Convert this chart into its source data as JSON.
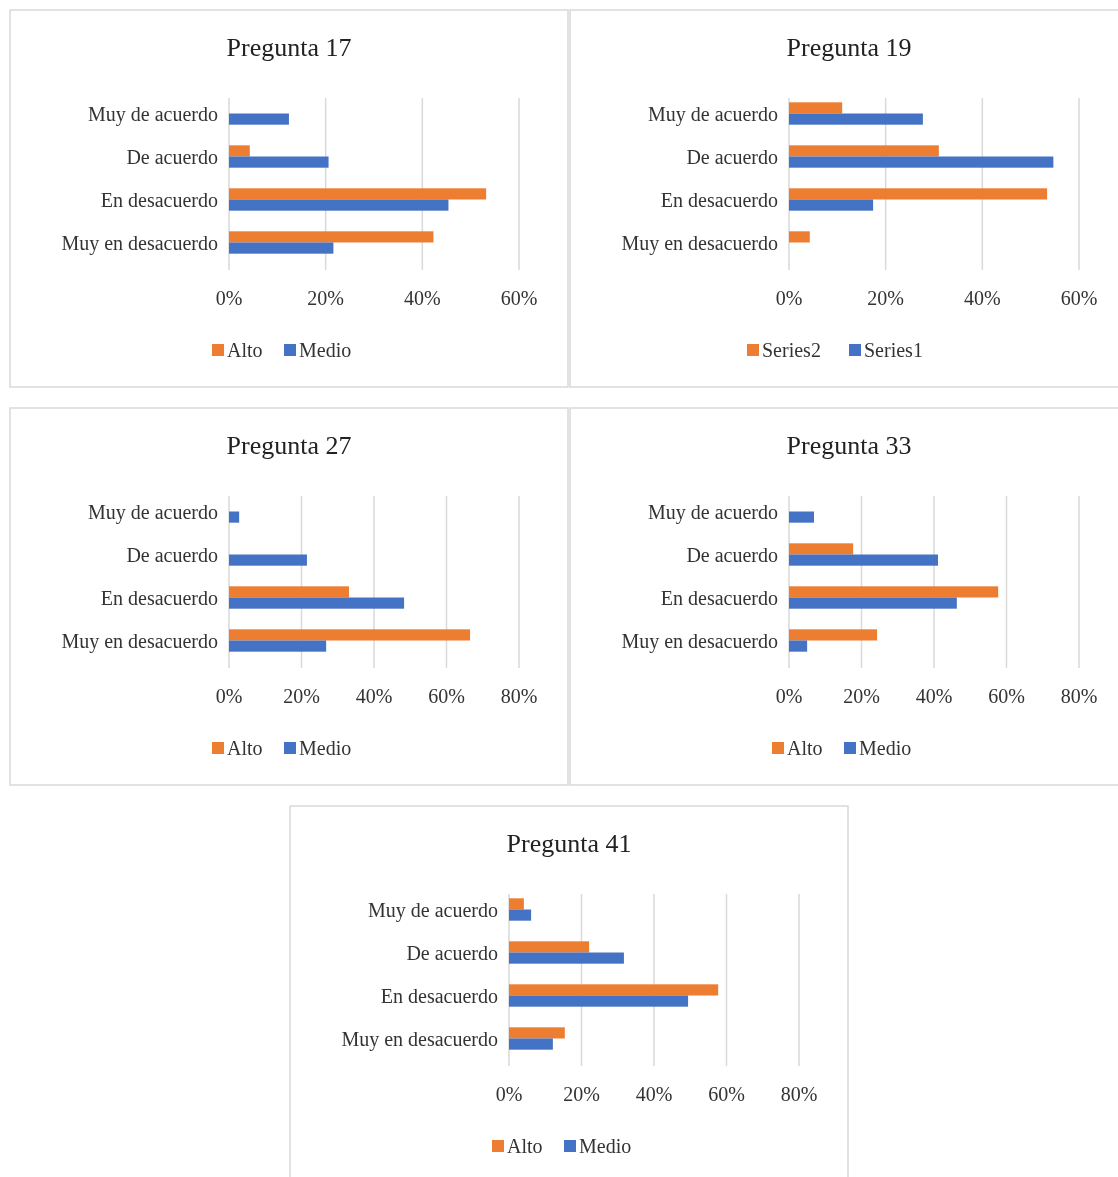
{
  "chart_data": [
    {
      "type": "bar",
      "orientation": "horizontal",
      "title": "Pregunta 17",
      "categories": [
        "Muy de acuerdo",
        "De acuerdo",
        "En desacuerdo",
        "Muy en desacuerdo"
      ],
      "series": [
        {
          "name": "Alto",
          "color": "#ed7d31",
          "values": [
            0,
            4.3,
            53.2,
            42.3
          ]
        },
        {
          "name": "Medio",
          "color": "#4472c4",
          "values": [
            12.4,
            20.6,
            45.4,
            21.6
          ]
        }
      ],
      "xlim": [
        0,
        60
      ],
      "xticks": [
        {
          "value": 0,
          "label": "0%"
        },
        {
          "value": 20,
          "label": "20%"
        },
        {
          "value": 40,
          "label": "40%"
        },
        {
          "value": 60,
          "label": "60%"
        }
      ],
      "grid": "x",
      "legend": "bottom"
    },
    {
      "type": "bar",
      "orientation": "horizontal",
      "title": "Pregunta 19",
      "categories": [
        "Muy de acuerdo",
        "De acuerdo",
        "En desacuerdo",
        "Muy en desacuerdo"
      ],
      "series": [
        {
          "name": "Series2",
          "color": "#ed7d31",
          "values": [
            11,
            31,
            53.4,
            4.3
          ]
        },
        {
          "name": "Series1",
          "color": "#4472c4",
          "values": [
            27.7,
            54.7,
            17.4,
            0
          ]
        }
      ],
      "xlim": [
        0,
        60
      ],
      "xticks": [
        {
          "value": 0,
          "label": "0%"
        },
        {
          "value": 20,
          "label": "20%"
        },
        {
          "value": 40,
          "label": "40%"
        },
        {
          "value": 60,
          "label": "60%"
        }
      ],
      "grid": "x",
      "legend": "bottom"
    },
    {
      "type": "bar",
      "orientation": "horizontal",
      "title": "Pregunta 27",
      "categories": [
        "Muy de acuerdo",
        "De acuerdo",
        "En desacuerdo",
        "Muy en desacuerdo"
      ],
      "series": [
        {
          "name": "Alto",
          "color": "#ed7d31",
          "values": [
            0,
            0,
            33.1,
            66.5
          ]
        },
        {
          "name": "Medio",
          "color": "#4472c4",
          "values": [
            2.8,
            21.5,
            48.3,
            26.8
          ]
        }
      ],
      "xlim": [
        0,
        80
      ],
      "xticks": [
        {
          "value": 0,
          "label": "0%"
        },
        {
          "value": 20,
          "label": "20%"
        },
        {
          "value": 40,
          "label": "40%"
        },
        {
          "value": 60,
          "label": "60%"
        },
        {
          "value": 80,
          "label": "80%"
        }
      ],
      "grid": "x",
      "legend": "bottom"
    },
    {
      "type": "bar",
      "orientation": "horizontal",
      "title": "Pregunta 33",
      "categories": [
        "Muy de acuerdo",
        "De acuerdo",
        "En desacuerdo",
        "Muy en desacuerdo"
      ],
      "series": [
        {
          "name": "Alto",
          "color": "#ed7d31",
          "values": [
            0,
            17.7,
            57.7,
            24.3
          ]
        },
        {
          "name": "Medio",
          "color": "#4472c4",
          "values": [
            6.9,
            41.1,
            46.3,
            5
          ]
        }
      ],
      "xlim": [
        0,
        80
      ],
      "xticks": [
        {
          "value": 0,
          "label": "0%"
        },
        {
          "value": 20,
          "label": "20%"
        },
        {
          "value": 40,
          "label": "40%"
        },
        {
          "value": 60,
          "label": "60%"
        },
        {
          "value": 80,
          "label": "80%"
        }
      ],
      "grid": "x",
      "legend": "bottom"
    },
    {
      "type": "bar",
      "orientation": "horizontal",
      "title": "Pregunta 41",
      "categories": [
        "Muy de acuerdo",
        "De acuerdo",
        "En desacuerdo",
        "Muy en desacuerdo"
      ],
      "series": [
        {
          "name": "Alto",
          "color": "#ed7d31",
          "values": [
            4.1,
            22.1,
            57.7,
            15.4
          ]
        },
        {
          "name": "Medio",
          "color": "#4472c4",
          "values": [
            6.1,
            31.7,
            49.4,
            12.1
          ]
        }
      ],
      "xlim": [
        0,
        80
      ],
      "xticks": [
        {
          "value": 0,
          "label": "0%"
        },
        {
          "value": 20,
          "label": "20%"
        },
        {
          "value": 40,
          "label": "40%"
        },
        {
          "value": 60,
          "label": "60%"
        },
        {
          "value": 80,
          "label": "80%"
        }
      ],
      "grid": "x",
      "legend": "bottom"
    }
  ]
}
